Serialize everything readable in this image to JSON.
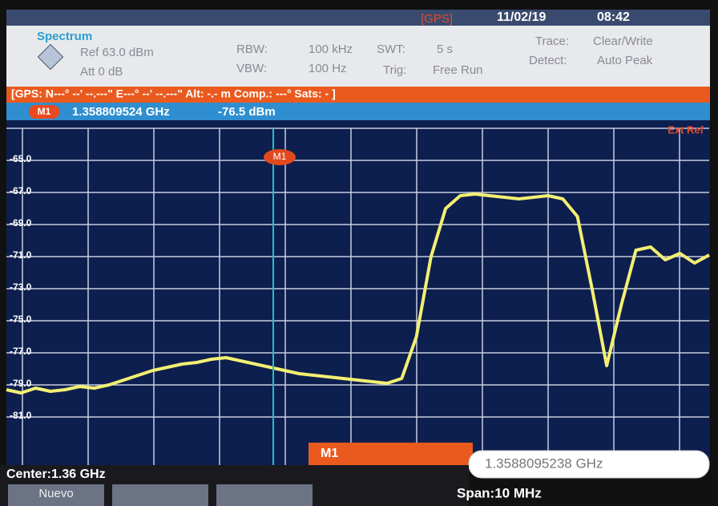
{
  "header": {
    "mode": "Spectrum",
    "ref": "Ref  63.0 dBm",
    "att": "Att  0 dB",
    "rbw_label": "RBW:",
    "rbw": "100 kHz",
    "vbw_label": "VBW:",
    "vbw": "100 Hz",
    "swt_label": "SWT:",
    "swt": "5 s",
    "trig_label": "Trig:",
    "trig": "Free Run",
    "trace_label": "Trace:",
    "trace": "Clear/Write",
    "detect_label": "Detect:",
    "detect": "Auto Peak",
    "gps": "[GPS]",
    "date": "11/02/19",
    "time": "08:42"
  },
  "gps_bar": "[GPS: N---° --' --.---\"  E---° --' --.---\"  Alt: -.- m  Comp.: ---° Sats: - ]",
  "marker_bar": {
    "marker": "M1",
    "frequency": "1.358809524 GHz",
    "level": "-76.5 dBm"
  },
  "chart_data": {
    "type": "line",
    "color": "#f3ef73",
    "grid": true,
    "ylim": [
      -83,
      -63
    ],
    "yticks": [
      {
        "value": -65,
        "label": "-65.0"
      },
      {
        "value": -67,
        "label": "-67.0"
      },
      {
        "value": -69,
        "label": "-69.0"
      },
      {
        "value": -71,
        "label": "-71.0"
      },
      {
        "value": -73,
        "label": "-73.0"
      },
      {
        "value": -75,
        "label": "-75.0"
      },
      {
        "value": -77,
        "label": "-77.0"
      },
      {
        "value": -79,
        "label": "-79.0"
      },
      {
        "value": -81,
        "label": "-81.0"
      }
    ],
    "values": [
      -79.3,
      -79.5,
      -79.2,
      -79.4,
      -79.3,
      -79.1,
      -79.2,
      -79.0,
      -78.7,
      -78.4,
      -78.1,
      -77.9,
      -77.7,
      -77.6,
      -77.4,
      -77.3,
      -77.5,
      -77.7,
      -77.9,
      -78.1,
      -78.3,
      -78.4,
      -78.5,
      -78.6,
      -78.7,
      -78.8,
      -78.9,
      -78.6,
      -76.0,
      -71.0,
      -68.0,
      -67.2,
      -67.1,
      -67.2,
      -67.3,
      -67.4,
      -67.3,
      -67.2,
      -67.4,
      -68.5,
      -73.0,
      -77.8,
      -74.0,
      -70.6,
      -70.4,
      -71.2,
      -70.8,
      -71.4,
      -70.9
    ],
    "annotation": "Ext Ref",
    "marker_label": "M1"
  },
  "footer": {
    "marker": "M1",
    "marker_freq": "1.3588095238 GHz",
    "center": "Center:1.36 GHz",
    "span": "Span:10 MHz",
    "button": "Nuevo"
  }
}
